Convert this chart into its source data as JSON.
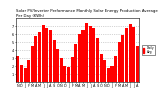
{
  "title": "Solar PV/Inverter Performance Monthly Solar Energy Production Average Per Day (KWh)",
  "months": [
    "N",
    "D",
    "J",
    "F",
    "M",
    "A",
    "M",
    "J",
    "J",
    "A",
    "S",
    "O",
    "N",
    "D",
    "J",
    "F",
    "M",
    "A",
    "M",
    "J",
    "J",
    "A",
    "S",
    "O",
    "N",
    "D",
    "J",
    "F",
    "M",
    "A",
    "M",
    "J",
    "J",
    "A"
  ],
  "values": [
    3.2,
    2.1,
    1.8,
    2.8,
    4.5,
    5.8,
    6.2,
    7.1,
    6.8,
    6.5,
    5.2,
    4.1,
    3.0,
    2.0,
    1.9,
    3.1,
    4.8,
    6.0,
    6.5,
    7.4,
    7.0,
    6.7,
    5.5,
    3.5,
    2.8,
    1.7,
    2.0,
    3.3,
    5.0,
    5.9,
    6.8,
    7.2,
    6.9,
    4.5
  ],
  "bar_color": "#ff0000",
  "bg_color": "#ffffff",
  "grid_color": "#aaaaaa",
  "ylim": [
    0,
    8
  ],
  "yticks": [
    1,
    2,
    3,
    4,
    5,
    6,
    7
  ],
  "legend_label": "Daily\nAvg",
  "legend_color": "#ff0000",
  "title_fontsize": 2.8,
  "tick_fontsize": 2.5,
  "legend_fontsize": 2.2
}
